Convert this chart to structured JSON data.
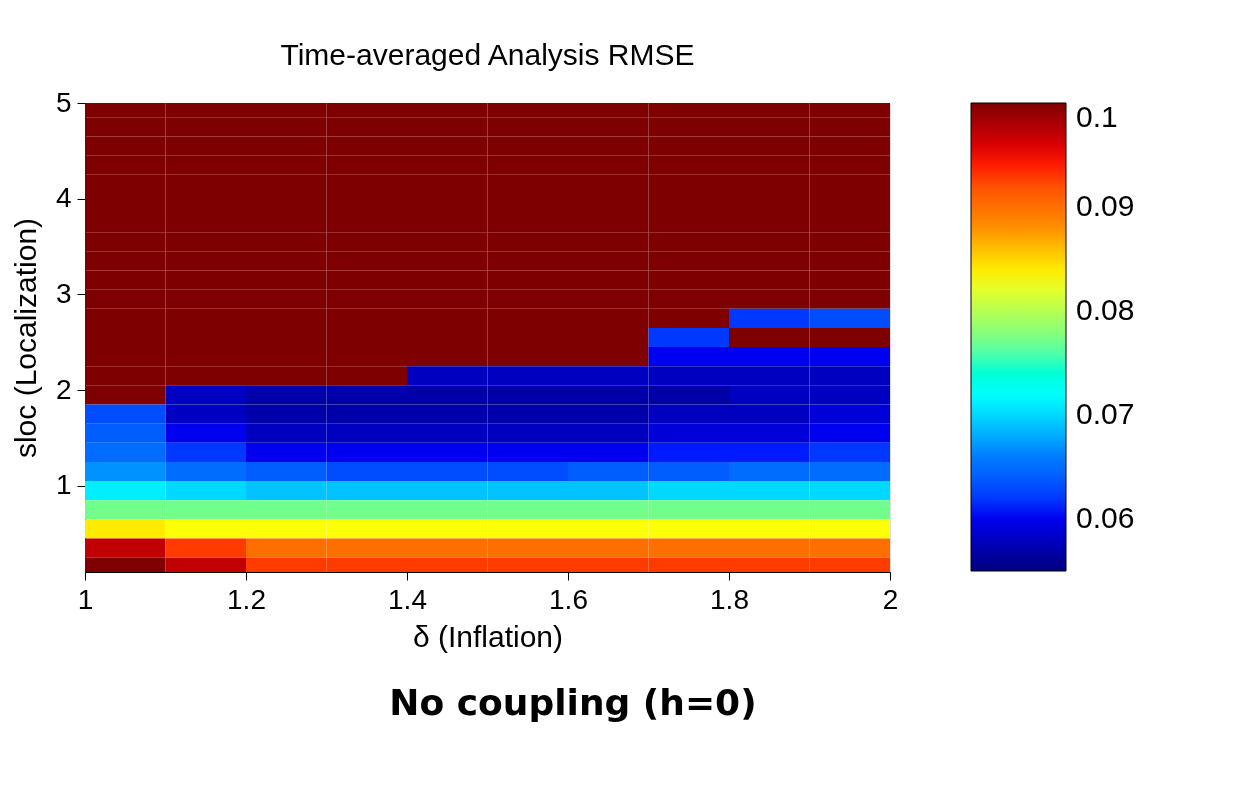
{
  "chart_data": {
    "type": "heatmap",
    "title": "Time-averaged Analysis RMSE",
    "xlabel": "δ (Inflation)",
    "ylabel": "sloc (Localization)",
    "annotations": [
      "No coupling (h=0)"
    ],
    "x": [
      1.05,
      1.15,
      1.25,
      1.35,
      1.45,
      1.55,
      1.65,
      1.75,
      1.85,
      1.95
    ],
    "y": [
      4.95,
      4.75,
      4.55,
      4.35,
      4.15,
      3.95,
      3.75,
      3.55,
      3.35,
      3.15,
      2.95,
      2.75,
      2.55,
      2.35,
      2.15,
      1.95,
      1.75,
      1.55,
      1.35,
      1.15,
      0.95,
      0.75,
      0.55,
      0.35,
      0.15
    ],
    "cells": [
      [
        0.1,
        0.1,
        0.1,
        0.1,
        0.1,
        0.1,
        0.1,
        0.1,
        0.1,
        0.1
      ],
      [
        0.1,
        0.1,
        0.1,
        0.1,
        0.1,
        0.1,
        0.1,
        0.1,
        0.1,
        0.1
      ],
      [
        0.1,
        0.1,
        0.1,
        0.1,
        0.1,
        0.1,
        0.1,
        0.1,
        0.1,
        0.1
      ],
      [
        0.1,
        0.1,
        0.1,
        0.1,
        0.1,
        0.1,
        0.1,
        0.1,
        0.1,
        0.1
      ],
      [
        0.1,
        0.1,
        0.1,
        0.1,
        0.1,
        0.1,
        0.1,
        0.1,
        0.1,
        0.1
      ],
      [
        0.1,
        0.1,
        0.1,
        0.1,
        0.1,
        0.1,
        0.1,
        0.1,
        0.1,
        0.1
      ],
      [
        0.1,
        0.1,
        0.1,
        0.1,
        0.1,
        0.1,
        0.1,
        0.1,
        0.1,
        0.1
      ],
      [
        0.1,
        0.1,
        0.1,
        0.1,
        0.1,
        0.1,
        0.1,
        0.1,
        0.1,
        0.1
      ],
      [
        0.1,
        0.1,
        0.1,
        0.1,
        0.1,
        0.1,
        0.1,
        0.1,
        0.1,
        0.1
      ],
      [
        0.1,
        0.1,
        0.1,
        0.1,
        0.1,
        0.1,
        0.1,
        0.1,
        0.1,
        0.1
      ],
      [
        0.1,
        0.1,
        0.1,
        0.1,
        0.1,
        0.1,
        0.1,
        0.1,
        0.1,
        0.1
      ],
      [
        0.1,
        0.1,
        0.1,
        0.1,
        0.1,
        0.1,
        0.1,
        0.1,
        0.062,
        0.063
      ],
      [
        0.1,
        0.1,
        0.1,
        0.1,
        0.1,
        0.1,
        0.1,
        0.062,
        0.1,
        0.1
      ],
      [
        0.1,
        0.1,
        0.1,
        0.1,
        0.1,
        0.1,
        0.1,
        0.06,
        0.06,
        0.06
      ],
      [
        0.1,
        0.1,
        0.1,
        0.1,
        0.058,
        0.058,
        0.058,
        0.058,
        0.058,
        0.058
      ],
      [
        0.1,
        0.058,
        0.057,
        0.057,
        0.057,
        0.057,
        0.057,
        0.057,
        0.058,
        0.058
      ],
      [
        0.063,
        0.058,
        0.057,
        0.057,
        0.057,
        0.057,
        0.057,
        0.058,
        0.058,
        0.059
      ],
      [
        0.064,
        0.06,
        0.058,
        0.058,
        0.058,
        0.058,
        0.058,
        0.059,
        0.059,
        0.06
      ],
      [
        0.065,
        0.062,
        0.06,
        0.06,
        0.06,
        0.06,
        0.06,
        0.061,
        0.061,
        0.062
      ],
      [
        0.067,
        0.065,
        0.064,
        0.063,
        0.063,
        0.063,
        0.064,
        0.064,
        0.065,
        0.065
      ],
      [
        0.071,
        0.07,
        0.069,
        0.069,
        0.069,
        0.069,
        0.069,
        0.07,
        0.07,
        0.07
      ],
      [
        0.077,
        0.077,
        0.077,
        0.077,
        0.077,
        0.077,
        0.077,
        0.077,
        0.077,
        0.077
      ],
      [
        0.084,
        0.083,
        0.083,
        0.083,
        0.083,
        0.083,
        0.083,
        0.083,
        0.083,
        0.083
      ],
      [
        0.097,
        0.093,
        0.09,
        0.09,
        0.09,
        0.09,
        0.09,
        0.09,
        0.09,
        0.09
      ],
      [
        0.1,
        0.097,
        0.093,
        0.093,
        0.093,
        0.093,
        0.093,
        0.093,
        0.093,
        0.093
      ]
    ],
    "xlim": [
      1,
      2
    ],
    "xticks": [
      1,
      1.2,
      1.4,
      1.6,
      1.8,
      2
    ],
    "ylim": [
      0.1,
      5
    ],
    "yticks": [
      1,
      2,
      3,
      4,
      5
    ],
    "clim": [
      0.055,
      0.1
    ],
    "cticks": [
      0.06,
      0.07,
      0.08,
      0.09,
      0.1
    ]
  }
}
